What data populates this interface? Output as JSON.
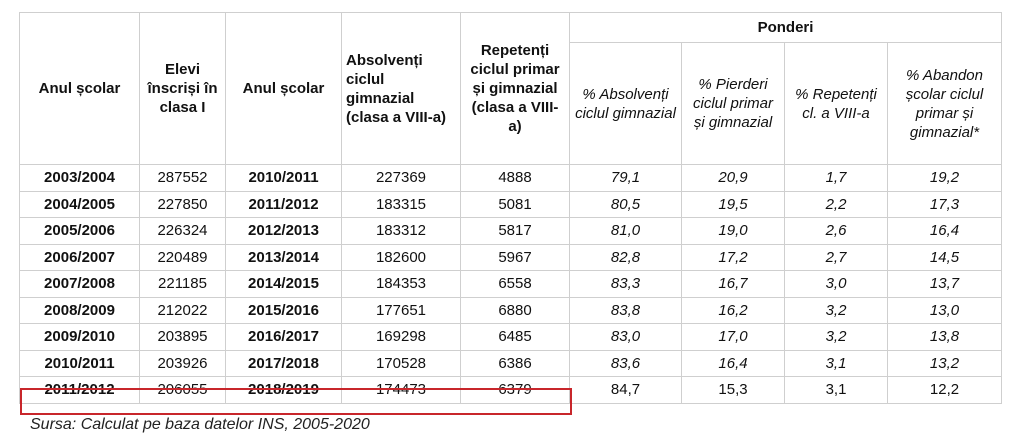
{
  "headers": {
    "anul_scolar_1": "Anul școlar",
    "elevi_inscrisi": "Elevi înscriși în clasa I",
    "anul_scolar_2": "Anul școlar",
    "absolventi": "Absolvenți ciclul gimnazial (clasa a VIII-a)",
    "repetenti": "Repetenți ciclul primar și gimnazial (clasa a VIII-a)",
    "ponderi": "Ponderi",
    "pct_absolventi": "% Absolvenți ciclul gimnazial",
    "pct_pierderi": "% Pierderi ciclul primar și gimnazial",
    "pct_repetenti": "% Repetenți cl. a VIII-a",
    "pct_abandon": "% Abandon școlar ciclul primar și gimnazial*"
  },
  "rows": [
    [
      "2003/2004",
      "287552",
      "2010/2011",
      "227369",
      "4888",
      "79,1",
      "20,9",
      "1,7",
      "19,2"
    ],
    [
      "2004/2005",
      "227850",
      "2011/2012",
      "183315",
      "5081",
      "80,5",
      "19,5",
      "2,2",
      "17,3"
    ],
    [
      "2005/2006",
      "226324",
      "2012/2013",
      "183312",
      "5817",
      "81,0",
      "19,0",
      "2,6",
      "16,4"
    ],
    [
      "2006/2007",
      "220489",
      "2013/2014",
      "182600",
      "5967",
      "82,8",
      "17,2",
      "2,7",
      "14,5"
    ],
    [
      "2007/2008",
      "221185",
      "2014/2015",
      "184353",
      "6558",
      "83,3",
      "16,7",
      "3,0",
      "13,7"
    ],
    [
      "2008/2009",
      "212022",
      "2015/2016",
      "177651",
      "6880",
      "83,8",
      "16,2",
      "3,2",
      "13,0"
    ],
    [
      "2009/2010",
      "203895",
      "2016/2017",
      "169298",
      "6485",
      "83,0",
      "17,0",
      "3,2",
      "13,8"
    ],
    [
      "2010/2011",
      "203926",
      "2017/2018",
      "170528",
      "6386",
      "83,6",
      "16,4",
      "3,1",
      "13,2"
    ],
    [
      "2011/2012",
      "206055",
      "2018/2019",
      "174473",
      "6379",
      "84,7",
      "15,3",
      "3,1",
      "12,2"
    ]
  ],
  "highlight_color": "#c8262b",
  "caption": "Sursa: Calculat pe baza datelor INS, 2005-2020"
}
